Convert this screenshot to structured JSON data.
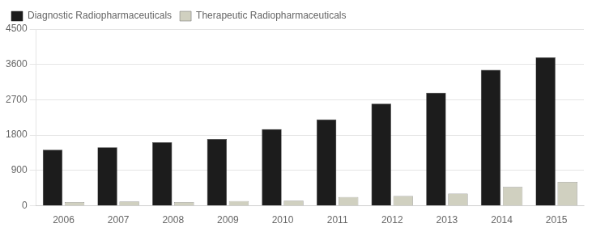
{
  "chart_data": {
    "type": "bar",
    "categories": [
      "2006",
      "2007",
      "2008",
      "2009",
      "2010",
      "2011",
      "2012",
      "2013",
      "2014",
      "2015"
    ],
    "series": [
      {
        "name": "Diagnostic Radiopharmaceuticals",
        "color": "#1c1c1c",
        "values": [
          1430,
          1490,
          1620,
          1700,
          1950,
          2200,
          2600,
          2880,
          3460,
          3780
        ]
      },
      {
        "name": "Therapeutic Radiopharmaceuticals",
        "color": "#d0d0c0",
        "values": [
          95,
          110,
          95,
          120,
          130,
          225,
          250,
          310,
          480,
          610
        ]
      }
    ],
    "ylim": [
      0,
      4500
    ],
    "yticks": [
      0,
      900,
      1800,
      2700,
      3600,
      4500
    ],
    "grid": true,
    "legend": "upper left"
  }
}
